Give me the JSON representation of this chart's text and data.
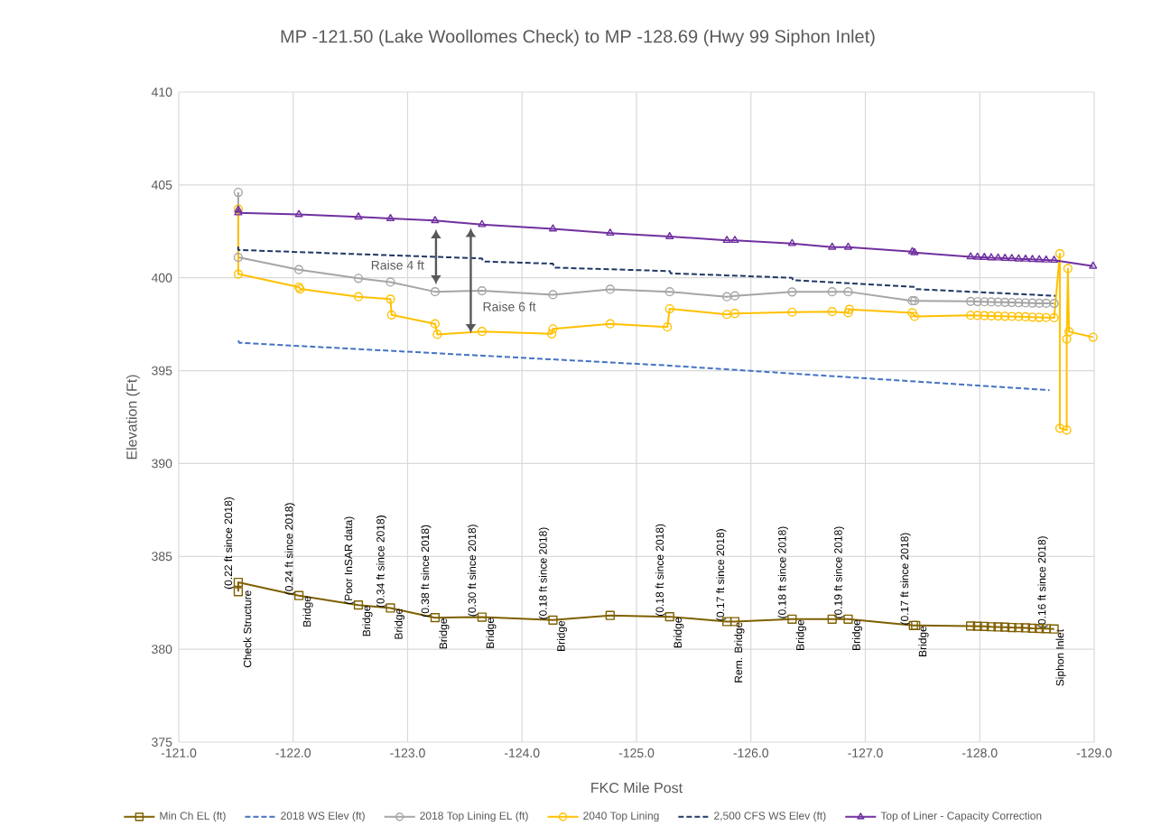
{
  "chart_data": {
    "type": "line",
    "title": "MP -121.50 (Lake Woollomes Check) to MP -128.69 (Hwy 99 Siphon Inlet)",
    "xlabel": "FKC Mile Post",
    "ylabel": "Elevation (Ft)",
    "xlim": [
      -121.0,
      -129.0
    ],
    "xticks": [
      {
        "value": -121,
        "label": "-121.0"
      },
      {
        "value": -122,
        "label": "-122.0"
      },
      {
        "value": -123,
        "label": "-123.0"
      },
      {
        "value": -124,
        "label": "-124.0"
      },
      {
        "value": -125,
        "label": "-125.0"
      },
      {
        "value": -126,
        "label": "-126.0"
      },
      {
        "value": -127,
        "label": "-127.0"
      },
      {
        "value": -128,
        "label": "-128.0"
      },
      {
        "value": -129,
        "label": "-129.0"
      }
    ],
    "ylim": [
      375,
      410
    ],
    "yticks": [
      375,
      380,
      385,
      390,
      395,
      400,
      405,
      410
    ],
    "grid": true,
    "legend": "bottom",
    "series": [
      {
        "name": "Min Ch EL (ft)",
        "color": "#7f6000",
        "marker": "square",
        "line_style": "solid",
        "x": [
          -121.52,
          -121.52,
          -122.05,
          -122.57,
          -122.85,
          -123.24,
          -123.65,
          -124.27,
          -124.77,
          -125.29,
          -125.79,
          -125.86,
          -126.36,
          -126.71,
          -126.85,
          -127.42,
          -127.44,
          -127.92,
          -127.98,
          -128.04,
          -128.1,
          -128.16,
          -128.22,
          -128.28,
          -128.34,
          -128.4,
          -128.46,
          -128.52,
          -128.58,
          -128.65
        ],
        "values": [
          383.1,
          383.6,
          382.89,
          382.38,
          382.22,
          381.7,
          381.73,
          381.57,
          381.82,
          381.75,
          381.49,
          381.49,
          381.62,
          381.62,
          381.62,
          381.28,
          381.28,
          381.25,
          381.24,
          381.23,
          381.21,
          381.2,
          381.19,
          381.17,
          381.16,
          381.15,
          381.13,
          381.12,
          381.11,
          381.09
        ]
      },
      {
        "name": "2018 WS Elev (ft)",
        "color": "#4472c4",
        "marker": "none",
        "line_style": "dashed",
        "x": [
          -121.52,
          -121.53,
          -125.24,
          -128.61
        ],
        "values": [
          396.62,
          396.5,
          395.29,
          393.95
        ]
      },
      {
        "name": "2018 Top Lining EL (ft)",
        "color": "#a5a5a5",
        "marker": "circle",
        "line_style": "solid",
        "x": [
          -121.52,
          -121.52,
          -122.05,
          -122.57,
          -122.85,
          -123.24,
          -123.65,
          -124.27,
          -124.77,
          -125.29,
          -125.79,
          -125.86,
          -126.36,
          -126.71,
          -126.85,
          -127.41,
          -127.43,
          -127.92,
          -127.98,
          -128.04,
          -128.1,
          -128.16,
          -128.22,
          -128.28,
          -128.34,
          -128.4,
          -128.46,
          -128.52,
          -128.58,
          -128.65
        ],
        "values": [
          404.6,
          401.1,
          400.44,
          399.97,
          399.77,
          399.25,
          399.3,
          399.09,
          399.38,
          399.25,
          398.98,
          399.03,
          399.24,
          399.25,
          399.25,
          398.76,
          398.76,
          398.73,
          398.72,
          398.71,
          398.7,
          398.69,
          398.68,
          398.67,
          398.66,
          398.65,
          398.64,
          398.63,
          398.63,
          398.62
        ]
      },
      {
        "name": "2040 Top Lining",
        "color": "#ffc000",
        "marker": "circle",
        "line_style": "solid",
        "x": [
          -121.52,
          -121.52,
          -122.05,
          -122.06,
          -122.57,
          -122.85,
          -122.86,
          -123.24,
          -123.26,
          -123.65,
          -124.26,
          -124.27,
          -124.77,
          -125.27,
          -125.29,
          -125.79,
          -125.86,
          -126.36,
          -126.71,
          -126.85,
          -126.86,
          -127.41,
          -127.43,
          -127.92,
          -127.98,
          -128.04,
          -128.1,
          -128.16,
          -128.22,
          -128.28,
          -128.34,
          -128.4,
          -128.46,
          -128.52,
          -128.58,
          -128.65,
          -128.7,
          -128.7,
          -128.76,
          -128.76,
          -128.77,
          -128.78,
          -128.99
        ],
        "values": [
          403.7,
          400.2,
          399.5,
          399.4,
          398.98,
          398.85,
          398.0,
          397.52,
          396.95,
          397.11,
          396.98,
          397.25,
          397.52,
          397.35,
          398.33,
          398.03,
          398.08,
          398.15,
          398.18,
          398.12,
          398.3,
          398.12,
          397.92,
          397.98,
          397.97,
          397.96,
          397.95,
          397.94,
          397.93,
          397.92,
          397.91,
          397.9,
          397.88,
          397.87,
          397.86,
          397.85,
          401.3,
          391.9,
          391.8,
          396.7,
          400.5,
          397.1,
          396.8
        ]
      },
      {
        "name": "2,500 CFS WS Elev (ft)",
        "color": "#203864",
        "marker": "none",
        "line_style": "dashed",
        "x": [
          -121.52,
          -121.52,
          -123.65,
          -123.66,
          -124.27,
          -124.28,
          -125.29,
          -125.3,
          -126.36,
          -126.37,
          -127.43,
          -127.44,
          -128.66
        ],
        "values": [
          401.68,
          401.5,
          401.04,
          400.88,
          400.76,
          400.55,
          400.36,
          400.24,
          400.0,
          399.87,
          399.51,
          399.39,
          399.03
        ]
      },
      {
        "name": "Top of Liner - Capacity Correction",
        "color": "#7030a0",
        "marker": "triangle",
        "line_style": "solid",
        "x": [
          -121.52,
          -121.52,
          -122.05,
          -122.57,
          -122.85,
          -123.24,
          -123.65,
          -124.27,
          -124.77,
          -125.29,
          -125.79,
          -125.86,
          -126.36,
          -126.71,
          -126.85,
          -127.41,
          -127.43,
          -127.92,
          -127.98,
          -128.04,
          -128.1,
          -128.16,
          -128.22,
          -128.28,
          -128.34,
          -128.4,
          -128.46,
          -128.52,
          -128.58,
          -128.65,
          -128.99
        ],
        "values": [
          403.65,
          403.5,
          403.41,
          403.28,
          403.19,
          403.08,
          402.87,
          402.63,
          402.41,
          402.22,
          402.02,
          402.02,
          401.85,
          401.65,
          401.65,
          401.41,
          401.36,
          401.13,
          401.11,
          401.1,
          401.08,
          401.07,
          401.05,
          401.04,
          401.02,
          401.01,
          400.99,
          400.98,
          400.96,
          400.95,
          400.63
        ]
      }
    ],
    "annotations": [
      "Raise 4 ft",
      "Raise 6 ft",
      {
        "text": "Check Structure",
        "x": -121.52,
        "y": 383.2
      },
      {
        "text": "(0.22 ft since 2018)",
        "x": -121.52,
        "y": 383.2
      },
      {
        "text": "Bridge",
        "x": -122.05,
        "y": 382.89
      },
      {
        "text": "(0.24 ft since 2018)",
        "x": -122.05,
        "y": 382.89
      },
      {
        "text": "Bridge",
        "x": -122.57,
        "y": 382.38
      },
      {
        "text": "(Poor InSAR data)",
        "x": -122.57,
        "y": 382.38
      },
      {
        "text": "Bridge",
        "x": -122.85,
        "y": 382.22
      },
      {
        "text": "(0.34 ft since 2018)",
        "x": -122.85,
        "y": 382.22
      },
      {
        "text": "Bridge",
        "x": -123.24,
        "y": 381.7
      },
      {
        "text": "(0.38 ft since 2018)",
        "x": -123.24,
        "y": 381.7
      },
      {
        "text": "Bridge",
        "x": -123.65,
        "y": 381.73
      },
      {
        "text": "(0.30 ft since 2018)",
        "x": -123.65,
        "y": 381.73
      },
      {
        "text": "Bridge",
        "x": -124.27,
        "y": 381.57
      },
      {
        "text": "(0.18 ft since 2018)",
        "x": -124.27,
        "y": 381.57
      },
      {
        "text": "Bridge",
        "x": -125.29,
        "y": 381.75
      },
      {
        "text": "(0.18 ft since 2018)",
        "x": -125.29,
        "y": 381.75
      },
      {
        "text": "Rem. Bridge",
        "x": -125.82,
        "y": 381.49
      },
      {
        "text": "(0.17 ft since 2018)",
        "x": -125.82,
        "y": 381.49
      },
      {
        "text": "Bridge",
        "x": -126.36,
        "y": 381.62
      },
      {
        "text": "(0.18 ft since 2018)",
        "x": -126.36,
        "y": 381.62
      },
      {
        "text": "Bridge",
        "x": -126.85,
        "y": 381.62
      },
      {
        "text": "(0.19 ft since 2018)",
        "x": -126.85,
        "y": 381.62
      },
      {
        "text": "Bridge",
        "x": -127.43,
        "y": 381.28
      },
      {
        "text": "(0.17 ft since 2018)",
        "x": -127.43,
        "y": 381.28
      },
      {
        "text": "Siphon Inlet",
        "x": -128.63,
        "y": 381.1
      },
      {
        "text": "(0.16 ft since 2018)",
        "x": -128.63,
        "y": 381.1
      }
    ]
  }
}
